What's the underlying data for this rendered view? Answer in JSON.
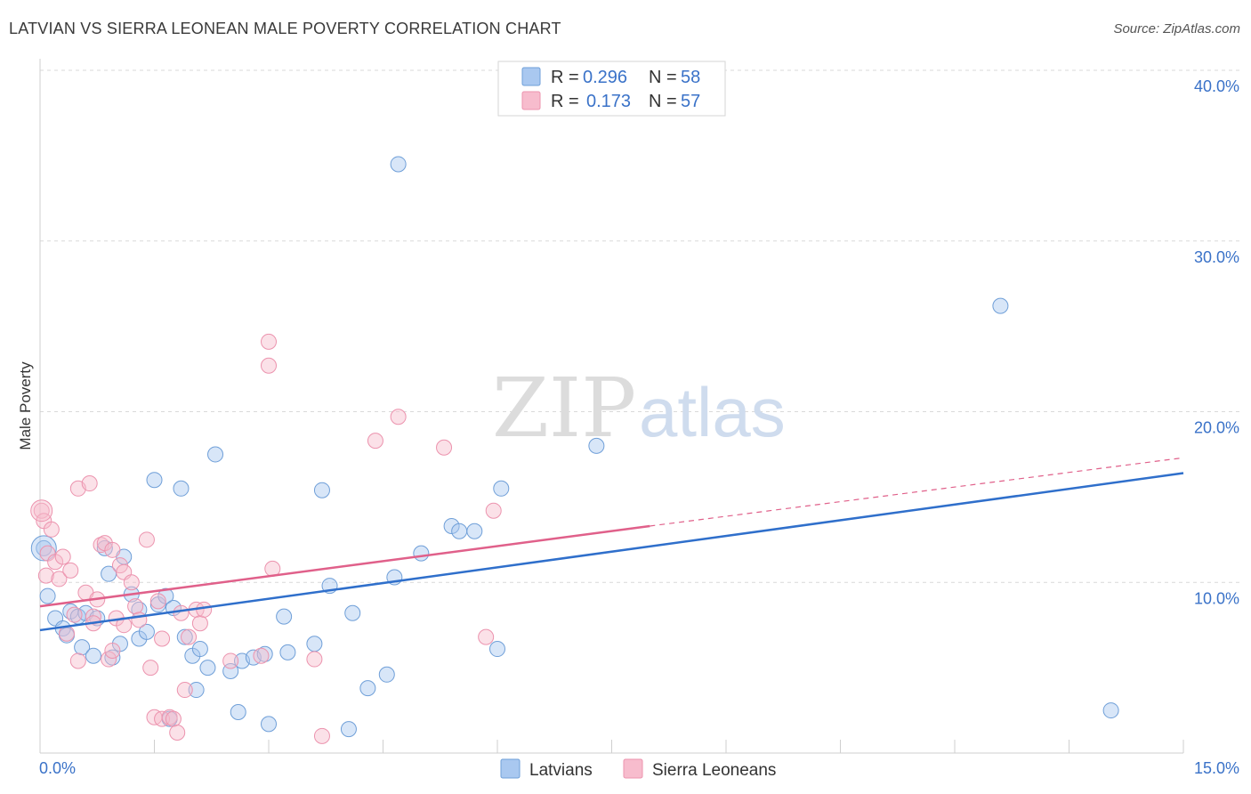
{
  "title": "LATVIAN VS SIERRA LEONEAN MALE POVERTY CORRELATION CHART",
  "source": "Source: ZipAtlas.com",
  "watermark": {
    "zip": "ZIP",
    "atlas": "atlas"
  },
  "colors": {
    "latvians_fill": "#a9c8f0",
    "latvians_stroke": "#6f9fd8",
    "latvians_line": "#2f6fcb",
    "sierra_fill": "#f7bccd",
    "sierra_stroke": "#ec93ae",
    "sierra_line": "#e0608a",
    "axis_text": "#3a72c8",
    "grid": "#d9d9d9"
  },
  "legend": {
    "r_label": "R =",
    "n_label": "N =",
    "rows": [
      {
        "r": "0.296",
        "n": "58"
      },
      {
        "r": "0.173",
        "n": "57"
      }
    ]
  },
  "chart_data": {
    "type": "scatter",
    "title": "LATVIAN VS SIERRA LEONEAN MALE POVERTY CORRELATION CHART",
    "xlabel": "",
    "ylabel": "Male Poverty",
    "xlim": [
      0,
      15
    ],
    "ylim": [
      0,
      40
    ],
    "x_tick_labels": [
      "0.0%",
      "15.0%"
    ],
    "y_ticks": [
      10,
      20,
      30,
      40
    ],
    "y_tick_labels": [
      "10.0%",
      "20.0%",
      "30.0%",
      "40.0%"
    ],
    "grid": true,
    "legend_position": "top-center",
    "series": [
      {
        "name": "Latvians",
        "trend": {
          "x": [
            0,
            15
          ],
          "y": [
            7.2,
            16.4
          ],
          "style": "solid"
        },
        "points": [
          [
            0.05,
            12.0
          ],
          [
            0.1,
            9.2
          ],
          [
            0.2,
            7.9
          ],
          [
            0.3,
            7.3
          ],
          [
            0.35,
            6.9
          ],
          [
            0.4,
            8.3
          ],
          [
            0.5,
            8.0
          ],
          [
            0.55,
            6.2
          ],
          [
            0.6,
            8.2
          ],
          [
            0.7,
            5.7
          ],
          [
            0.75,
            7.9
          ],
          [
            0.85,
            12.0
          ],
          [
            0.9,
            10.5
          ],
          [
            0.95,
            5.6
          ],
          [
            1.05,
            6.4
          ],
          [
            1.1,
            11.5
          ],
          [
            1.2,
            9.3
          ],
          [
            1.3,
            6.7
          ],
          [
            1.3,
            8.4
          ],
          [
            1.4,
            7.1
          ],
          [
            1.5,
            16.0
          ],
          [
            1.55,
            8.7
          ],
          [
            1.65,
            9.2
          ],
          [
            1.7,
            2.0
          ],
          [
            1.75,
            8.5
          ],
          [
            1.85,
            15.5
          ],
          [
            1.9,
            6.8
          ],
          [
            2.0,
            5.7
          ],
          [
            2.05,
            3.7
          ],
          [
            2.1,
            6.1
          ],
          [
            2.2,
            5.0
          ],
          [
            2.3,
            17.5
          ],
          [
            2.5,
            4.8
          ],
          [
            2.6,
            2.4
          ],
          [
            2.65,
            5.4
          ],
          [
            2.8,
            5.6
          ],
          [
            2.95,
            5.8
          ],
          [
            3.0,
            1.7
          ],
          [
            3.2,
            8.0
          ],
          [
            3.25,
            5.9
          ],
          [
            3.6,
            6.4
          ],
          [
            3.7,
            15.4
          ],
          [
            3.8,
            9.8
          ],
          [
            4.1,
            8.2
          ],
          [
            4.3,
            3.8
          ],
          [
            4.55,
            4.6
          ],
          [
            4.65,
            10.3
          ],
          [
            4.7,
            34.5
          ],
          [
            5.0,
            11.7
          ],
          [
            5.4,
            13.3
          ],
          [
            5.5,
            13.0
          ],
          [
            5.7,
            13.0
          ],
          [
            6.0,
            6.1
          ],
          [
            6.05,
            15.5
          ],
          [
            7.3,
            18.0
          ],
          [
            12.6,
            26.2
          ],
          [
            14.05,
            2.5
          ],
          [
            4.05,
            1.4
          ]
        ]
      },
      {
        "name": "Sierra Leoneans",
        "trend": {
          "x": [
            0,
            8
          ],
          "y": [
            8.6,
            13.3
          ],
          "x_dashed_to": 15,
          "y_dashed_to": 17.3,
          "style": "solid-then-dashed"
        },
        "points": [
          [
            0.02,
            14.2
          ],
          [
            0.05,
            13.6
          ],
          [
            0.08,
            10.4
          ],
          [
            0.1,
            11.7
          ],
          [
            0.15,
            13.1
          ],
          [
            0.2,
            11.2
          ],
          [
            0.25,
            10.2
          ],
          [
            0.3,
            11.5
          ],
          [
            0.35,
            7.0
          ],
          [
            0.4,
            10.7
          ],
          [
            0.45,
            8.1
          ],
          [
            0.5,
            15.5
          ],
          [
            0.5,
            5.4
          ],
          [
            0.6,
            9.4
          ],
          [
            0.65,
            15.8
          ],
          [
            0.7,
            8.0
          ],
          [
            0.7,
            7.6
          ],
          [
            0.75,
            9.0
          ],
          [
            0.8,
            12.2
          ],
          [
            0.85,
            12.3
          ],
          [
            0.9,
            5.5
          ],
          [
            0.95,
            11.9
          ],
          [
            0.95,
            6.0
          ],
          [
            1.0,
            7.9
          ],
          [
            1.05,
            11.0
          ],
          [
            1.1,
            7.5
          ],
          [
            1.1,
            10.6
          ],
          [
            1.2,
            10.0
          ],
          [
            1.25,
            8.6
          ],
          [
            1.3,
            7.8
          ],
          [
            1.4,
            12.5
          ],
          [
            1.45,
            5.0
          ],
          [
            1.5,
            2.1
          ],
          [
            1.55,
            8.9
          ],
          [
            1.6,
            6.7
          ],
          [
            1.6,
            2.0
          ],
          [
            1.7,
            2.1
          ],
          [
            1.75,
            2.0
          ],
          [
            1.8,
            1.2
          ],
          [
            1.85,
            8.2
          ],
          [
            1.9,
            3.7
          ],
          [
            1.95,
            6.8
          ],
          [
            2.05,
            8.4
          ],
          [
            2.1,
            7.6
          ],
          [
            2.15,
            8.4
          ],
          [
            2.5,
            5.4
          ],
          [
            2.9,
            5.7
          ],
          [
            3.0,
            24.1
          ],
          [
            3.0,
            22.7
          ],
          [
            3.05,
            10.8
          ],
          [
            3.6,
            5.5
          ],
          [
            3.7,
            1.0
          ],
          [
            4.4,
            18.3
          ],
          [
            4.7,
            19.7
          ],
          [
            5.3,
            17.9
          ],
          [
            5.85,
            6.8
          ],
          [
            5.95,
            14.2
          ]
        ]
      }
    ]
  }
}
